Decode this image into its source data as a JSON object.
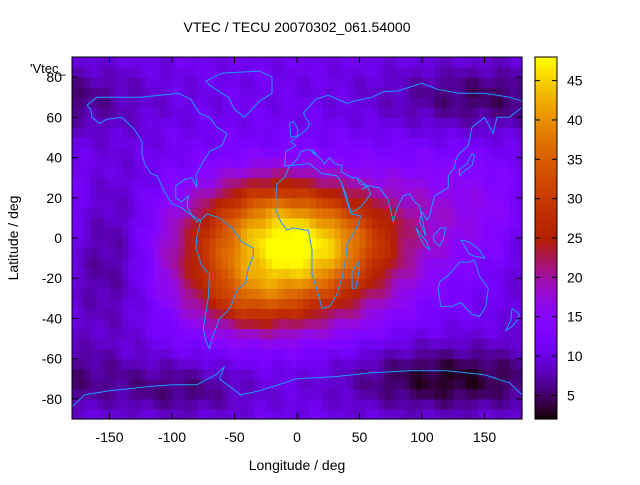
{
  "chart_data": {
    "type": "heatmap",
    "title": "VTEC / TECU 20070302_061.54000",
    "xlabel": "Longitude / deg",
    "ylabel": "Latitude / deg",
    "key_label": "'Vtec_",
    "xlim": [
      -180,
      180
    ],
    "ylim": [
      -90,
      90
    ],
    "x_ticks": [
      -150,
      -100,
      -50,
      0,
      50,
      100,
      150
    ],
    "y_ticks": [
      -80,
      -60,
      -40,
      -20,
      0,
      20,
      40,
      60,
      80
    ],
    "colorbar": {
      "range": [
        2,
        48
      ],
      "ticks": [
        5,
        10,
        15,
        20,
        25,
        30,
        35,
        40,
        45
      ],
      "palette": "black-blue-purple-red-orange-yellow"
    },
    "grid": false,
    "background_level": 11,
    "blobs": [
      {
        "lon": -10,
        "lat": -8,
        "amp": 35,
        "sx": 55,
        "sy": 22
      },
      {
        "lon": -20,
        "lat": 15,
        "amp": 7,
        "sx": 30,
        "sy": 12
      },
      {
        "lon": 35,
        "lat": 0,
        "amp": 5,
        "sx": 30,
        "sy": 12
      },
      {
        "lon": -40,
        "lat": -32,
        "amp": 6,
        "sx": 25,
        "sy": 10
      },
      {
        "lon": 120,
        "lat": 15,
        "amp": 5,
        "sx": 60,
        "sy": 20
      },
      {
        "lon": 150,
        "lat": 70,
        "amp": -6,
        "sx": 60,
        "sy": 12
      },
      {
        "lon": -150,
        "lat": -5,
        "amp": -6,
        "sx": 25,
        "sy": 30
      },
      {
        "lon": 120,
        "lat": -70,
        "amp": -8,
        "sx": 60,
        "sy": 12
      },
      {
        "lon": -90,
        "lat": -75,
        "amp": -5,
        "sx": 40,
        "sy": 10
      }
    ],
    "coastlines": [
      {
        "name": "north-america",
        "points": [
          [
            -168,
            66
          ],
          [
            -160,
            70
          ],
          [
            -140,
            70
          ],
          [
            -125,
            70
          ],
          [
            -95,
            72
          ],
          [
            -85,
            69
          ],
          [
            -78,
            62
          ],
          [
            -70,
            60
          ],
          [
            -64,
            55
          ],
          [
            -56,
            52
          ],
          [
            -60,
            46
          ],
          [
            -70,
            43
          ],
          [
            -76,
            37
          ],
          [
            -81,
            31
          ],
          [
            -80,
            25
          ],
          [
            -84,
            30
          ],
          [
            -90,
            29
          ],
          [
            -97,
            26
          ],
          [
            -97,
            20
          ],
          [
            -92,
            18
          ],
          [
            -87,
            21
          ],
          [
            -88,
            16
          ],
          [
            -84,
            11
          ],
          [
            -80,
            8
          ],
          [
            -78,
            9
          ],
          [
            -86,
            12
          ],
          [
            -92,
            15
          ],
          [
            -100,
            17
          ],
          [
            -106,
            23
          ],
          [
            -112,
            31
          ],
          [
            -117,
            32
          ],
          [
            -122,
            37
          ],
          [
            -124,
            42
          ],
          [
            -124,
            48
          ],
          [
            -130,
            54
          ],
          [
            -140,
            60
          ],
          [
            -152,
            59
          ],
          [
            -158,
            57
          ],
          [
            -164,
            60
          ],
          [
            -165,
            64
          ],
          [
            -168,
            66
          ]
        ]
      },
      {
        "name": "greenland",
        "points": [
          [
            -73,
            78
          ],
          [
            -60,
            82
          ],
          [
            -30,
            83
          ],
          [
            -20,
            80
          ],
          [
            -20,
            72
          ],
          [
            -30,
            68
          ],
          [
            -42,
            60
          ],
          [
            -50,
            64
          ],
          [
            -55,
            70
          ],
          [
            -70,
            76
          ],
          [
            -73,
            78
          ]
        ]
      },
      {
        "name": "south-america",
        "points": [
          [
            -77,
            9
          ],
          [
            -72,
            12
          ],
          [
            -62,
            10
          ],
          [
            -52,
            5
          ],
          [
            -44,
            -2
          ],
          [
            -35,
            -5
          ],
          [
            -35,
            -9
          ],
          [
            -39,
            -15
          ],
          [
            -41,
            -22
          ],
          [
            -48,
            -26
          ],
          [
            -53,
            -34
          ],
          [
            -58,
            -38
          ],
          [
            -62,
            -40
          ],
          [
            -65,
            -45
          ],
          [
            -68,
            -50
          ],
          [
            -70,
            -55
          ],
          [
            -73,
            -51
          ],
          [
            -75,
            -45
          ],
          [
            -73,
            -37
          ],
          [
            -71,
            -30
          ],
          [
            -70,
            -18
          ],
          [
            -76,
            -14
          ],
          [
            -81,
            -5
          ],
          [
            -80,
            1
          ],
          [
            -77,
            9
          ]
        ]
      },
      {
        "name": "africa",
        "points": [
          [
            -17,
            21
          ],
          [
            -16,
            27
          ],
          [
            -10,
            30
          ],
          [
            -6,
            36
          ],
          [
            10,
            37
          ],
          [
            20,
            32
          ],
          [
            32,
            31
          ],
          [
            35,
            28
          ],
          [
            43,
            12
          ],
          [
            51,
            11
          ],
          [
            47,
            4
          ],
          [
            40,
            -3
          ],
          [
            39,
            -10
          ],
          [
            36,
            -20
          ],
          [
            32,
            -28
          ],
          [
            26,
            -34
          ],
          [
            20,
            -35
          ],
          [
            18,
            -30
          ],
          [
            12,
            -18
          ],
          [
            12,
            -6
          ],
          [
            9,
            4
          ],
          [
            6,
            4
          ],
          [
            -3,
            5
          ],
          [
            -8,
            4
          ],
          [
            -13,
            8
          ],
          [
            -17,
            14
          ],
          [
            -17,
            21
          ]
        ]
      },
      {
        "name": "madagascar",
        "points": [
          [
            44,
            -25
          ],
          [
            47,
            -25
          ],
          [
            50,
            -15
          ],
          [
            49,
            -12
          ],
          [
            44,
            -17
          ],
          [
            44,
            -25
          ]
        ]
      },
      {
        "name": "eurasia",
        "points": [
          [
            -10,
            36
          ],
          [
            -9,
            43
          ],
          [
            -1,
            46
          ],
          [
            -5,
            48
          ],
          [
            2,
            51
          ],
          [
            8,
            54
          ],
          [
            10,
            57
          ],
          [
            5,
            62
          ],
          [
            15,
            69
          ],
          [
            25,
            71
          ],
          [
            40,
            67
          ],
          [
            45,
            68
          ],
          [
            60,
            70
          ],
          [
            70,
            73
          ],
          [
            80,
            73
          ],
          [
            100,
            77
          ],
          [
            112,
            74
          ],
          [
            130,
            72
          ],
          [
            150,
            72
          ],
          [
            170,
            70
          ],
          [
            180,
            68
          ],
          [
            180,
            65
          ],
          [
            170,
            60
          ],
          [
            160,
            60
          ],
          [
            157,
            52
          ],
          [
            150,
            60
          ],
          [
            140,
            55
          ],
          [
            137,
            46
          ],
          [
            130,
            42
          ],
          [
            127,
            39
          ],
          [
            126,
            35
          ],
          [
            121,
            31
          ],
          [
            121,
            25
          ],
          [
            110,
            21
          ],
          [
            106,
            11
          ],
          [
            104,
            9
          ],
          [
            100,
            13
          ],
          [
            98,
            8
          ],
          [
            103,
            1
          ],
          [
            98,
            16
          ],
          [
            94,
            18
          ],
          [
            90,
            22
          ],
          [
            85,
            21
          ],
          [
            80,
            15
          ],
          [
            77,
            8
          ],
          [
            73,
            19
          ],
          [
            66,
            25
          ],
          [
            57,
            26
          ],
          [
            52,
            24
          ],
          [
            56,
            26
          ],
          [
            48,
            30
          ],
          [
            44,
            30
          ],
          [
            35,
            33
          ],
          [
            36,
            36
          ],
          [
            30,
            37
          ],
          [
            26,
            40
          ],
          [
            22,
            37
          ],
          [
            18,
            40
          ],
          [
            12,
            44
          ],
          [
            15,
            41
          ],
          [
            10,
            44
          ],
          [
            3,
            43
          ],
          [
            0,
            39
          ],
          [
            -5,
            36
          ],
          [
            -10,
            36
          ]
        ]
      },
      {
        "name": "arabia",
        "points": [
          [
            35,
            28
          ],
          [
            39,
            22
          ],
          [
            43,
            13
          ],
          [
            45,
            13
          ],
          [
            52,
            16
          ],
          [
            59,
            22
          ],
          [
            56,
            26
          ],
          [
            50,
            27
          ],
          [
            48,
            30
          ]
        ]
      },
      {
        "name": "uk",
        "points": [
          [
            -5,
            50
          ],
          [
            1,
            51
          ],
          [
            0,
            55
          ],
          [
            -3,
            58
          ],
          [
            -6,
            57
          ],
          [
            -5,
            50
          ]
        ]
      },
      {
        "name": "japan",
        "points": [
          [
            130,
            31
          ],
          [
            135,
            34
          ],
          [
            140,
            36
          ],
          [
            142,
            41
          ],
          [
            140,
            42
          ],
          [
            136,
            37
          ],
          [
            130,
            34
          ],
          [
            130,
            31
          ]
        ]
      },
      {
        "name": "borneo",
        "points": [
          [
            109,
            1
          ],
          [
            115,
            5
          ],
          [
            119,
            5
          ],
          [
            117,
            -1
          ],
          [
            114,
            -4
          ],
          [
            110,
            -2
          ],
          [
            109,
            1
          ]
        ]
      },
      {
        "name": "sumatra",
        "points": [
          [
            95,
            5
          ],
          [
            100,
            1
          ],
          [
            104,
            -2
          ],
          [
            106,
            -6
          ],
          [
            101,
            -3
          ],
          [
            97,
            2
          ],
          [
            95,
            5
          ]
        ]
      },
      {
        "name": "new-guinea",
        "points": [
          [
            131,
            -1
          ],
          [
            138,
            -2
          ],
          [
            146,
            -6
          ],
          [
            150,
            -10
          ],
          [
            142,
            -9
          ],
          [
            138,
            -8
          ],
          [
            131,
            -1
          ]
        ]
      },
      {
        "name": "australia",
        "points": [
          [
            114,
            -22
          ],
          [
            122,
            -18
          ],
          [
            130,
            -12
          ],
          [
            137,
            -12
          ],
          [
            142,
            -11
          ],
          [
            146,
            -19
          ],
          [
            153,
            -25
          ],
          [
            151,
            -34
          ],
          [
            146,
            -39
          ],
          [
            140,
            -38
          ],
          [
            131,
            -32
          ],
          [
            124,
            -34
          ],
          [
            115,
            -34
          ],
          [
            113,
            -26
          ],
          [
            114,
            -22
          ]
        ]
      },
      {
        "name": "new-zealand",
        "points": [
          [
            172,
            -35
          ],
          [
            178,
            -38
          ],
          [
            176,
            -41
          ],
          [
            172,
            -44
          ],
          [
            167,
            -46
          ],
          [
            171,
            -41
          ],
          [
            172,
            -35
          ]
        ]
      },
      {
        "name": "antarctica",
        "points": [
          [
            -180,
            -84
          ],
          [
            -170,
            -78
          ],
          [
            -150,
            -76
          ],
          [
            -120,
            -74
          ],
          [
            -100,
            -73
          ],
          [
            -80,
            -73
          ],
          [
            -65,
            -68
          ],
          [
            -58,
            -64
          ],
          [
            -62,
            -70
          ],
          [
            -45,
            -78
          ],
          [
            -30,
            -76
          ],
          [
            0,
            -70
          ],
          [
            30,
            -69
          ],
          [
            60,
            -67
          ],
          [
            90,
            -66
          ],
          [
            120,
            -66
          ],
          [
            150,
            -68
          ],
          [
            170,
            -72
          ],
          [
            180,
            -78
          ]
        ]
      }
    ]
  }
}
